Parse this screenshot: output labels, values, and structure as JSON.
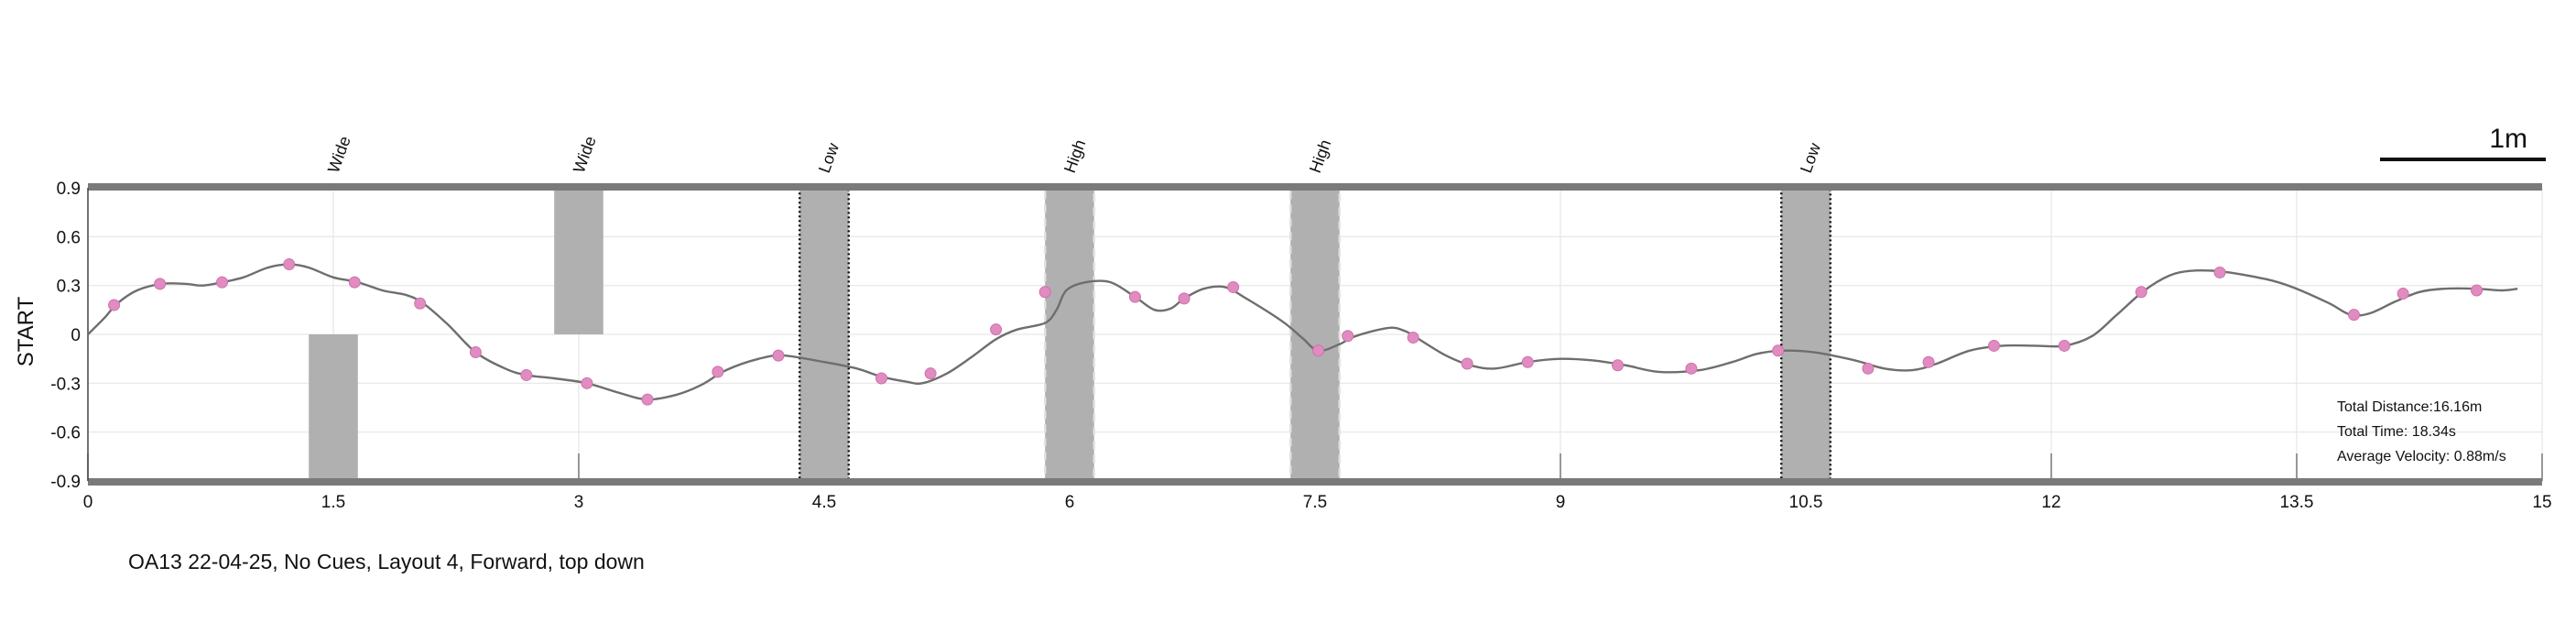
{
  "chart_data": {
    "type": "line",
    "ylabel": "START",
    "xlim": [
      0,
      15
    ],
    "ylim": [
      -0.9,
      0.9
    ],
    "x_ticks": [
      "0",
      "1.5",
      "3",
      "4.5",
      "6",
      "7.5",
      "9",
      "10.5",
      "12",
      "13.5",
      "15"
    ],
    "y_ticks": [
      "0.9",
      "0.6",
      "0.3",
      "0",
      "-0.3",
      "-0.6",
      "-0.9"
    ],
    "grid": true,
    "caption": "OA13 22-04-25, No Cues, Layout 4, Forward, top down",
    "scale_bar": "1m",
    "stats": {
      "distance": "Total Distance:16.16m",
      "time": "Total Time: 18.34s",
      "velocity": "Average Velocity: 0.88m/s"
    },
    "obstacles": [
      {
        "label": "Wide",
        "x0": 1.35,
        "x1": 1.65,
        "y0": -0.9,
        "y1": 0.0,
        "style": "solid"
      },
      {
        "label": "Wide",
        "x0": 2.85,
        "x1": 3.15,
        "y0": 0.0,
        "y1": 0.9,
        "style": "solid"
      },
      {
        "label": "Low",
        "x0": 4.35,
        "x1": 4.65,
        "y0": -0.9,
        "y1": 0.9,
        "style": "dotted-dark"
      },
      {
        "label": "High",
        "x0": 5.85,
        "x1": 6.15,
        "y0": -0.9,
        "y1": 0.9,
        "style": "dashed-light"
      },
      {
        "label": "High",
        "x0": 7.35,
        "x1": 7.65,
        "y0": -0.9,
        "y1": 0.9,
        "style": "dashed-light"
      },
      {
        "label": "Low",
        "x0": 10.35,
        "x1": 10.65,
        "y0": -0.9,
        "y1": 0.9,
        "style": "dotted-dark"
      }
    ],
    "path": [
      [
        0.0,
        0.0
      ],
      [
        0.1,
        0.1
      ],
      [
        0.18,
        0.19
      ],
      [
        0.3,
        0.27
      ],
      [
        0.45,
        0.31
      ],
      [
        0.6,
        0.31
      ],
      [
        0.7,
        0.3
      ],
      [
        0.82,
        0.32
      ],
      [
        0.95,
        0.35
      ],
      [
        1.1,
        0.41
      ],
      [
        1.23,
        0.43
      ],
      [
        1.35,
        0.41
      ],
      [
        1.5,
        0.35
      ],
      [
        1.65,
        0.32
      ],
      [
        1.8,
        0.27
      ],
      [
        1.95,
        0.24
      ],
      [
        2.05,
        0.19
      ],
      [
        2.2,
        0.06
      ],
      [
        2.37,
        -0.11
      ],
      [
        2.55,
        -0.21
      ],
      [
        2.68,
        -0.25
      ],
      [
        2.85,
        -0.27
      ],
      [
        3.05,
        -0.3
      ],
      [
        3.25,
        -0.36
      ],
      [
        3.42,
        -0.4
      ],
      [
        3.6,
        -0.37
      ],
      [
        3.75,
        -0.31
      ],
      [
        3.9,
        -0.22
      ],
      [
        4.1,
        -0.15
      ],
      [
        4.25,
        -0.13
      ],
      [
        4.5,
        -0.17
      ],
      [
        4.7,
        -0.21
      ],
      [
        4.85,
        -0.26
      ],
      [
        5.0,
        -0.29
      ],
      [
        5.1,
        -0.3
      ],
      [
        5.25,
        -0.24
      ],
      [
        5.4,
        -0.14
      ],
      [
        5.55,
        -0.03
      ],
      [
        5.68,
        0.03
      ],
      [
        5.85,
        0.07
      ],
      [
        5.92,
        0.15
      ],
      [
        5.98,
        0.27
      ],
      [
        6.1,
        0.32
      ],
      [
        6.25,
        0.32
      ],
      [
        6.4,
        0.23
      ],
      [
        6.52,
        0.15
      ],
      [
        6.62,
        0.16
      ],
      [
        6.7,
        0.22
      ],
      [
        6.82,
        0.28
      ],
      [
        6.95,
        0.29
      ],
      [
        7.08,
        0.22
      ],
      [
        7.3,
        0.08
      ],
      [
        7.42,
        -0.02
      ],
      [
        7.52,
        -0.1
      ],
      [
        7.65,
        -0.06
      ],
      [
        7.75,
        -0.01
      ],
      [
        7.95,
        0.04
      ],
      [
        8.05,
        0.02
      ],
      [
        8.12,
        -0.02
      ],
      [
        8.3,
        -0.13
      ],
      [
        8.45,
        -0.19
      ],
      [
        8.6,
        -0.21
      ],
      [
        8.8,
        -0.17
      ],
      [
        9.0,
        -0.15
      ],
      [
        9.2,
        -0.16
      ],
      [
        9.4,
        -0.19
      ],
      [
        9.6,
        -0.23
      ],
      [
        9.85,
        -0.22
      ],
      [
        10.05,
        -0.17
      ],
      [
        10.2,
        -0.12
      ],
      [
        10.35,
        -0.1
      ],
      [
        10.55,
        -0.11
      ],
      [
        10.8,
        -0.16
      ],
      [
        10.98,
        -0.21
      ],
      [
        11.15,
        -0.22
      ],
      [
        11.3,
        -0.18
      ],
      [
        11.5,
        -0.1
      ],
      [
        11.7,
        -0.07
      ],
      [
        11.9,
        -0.07
      ],
      [
        12.08,
        -0.07
      ],
      [
        12.25,
        -0.01
      ],
      [
        12.4,
        0.12
      ],
      [
        12.57,
        0.27
      ],
      [
        12.72,
        0.36
      ],
      [
        12.85,
        0.39
      ],
      [
        13.0,
        0.39
      ],
      [
        13.15,
        0.37
      ],
      [
        13.35,
        0.33
      ],
      [
        13.5,
        0.28
      ],
      [
        13.7,
        0.19
      ],
      [
        13.83,
        0.12
      ],
      [
        13.95,
        0.13
      ],
      [
        14.1,
        0.2
      ],
      [
        14.25,
        0.26
      ],
      [
        14.4,
        0.28
      ],
      [
        14.6,
        0.28
      ],
      [
        14.75,
        0.27
      ],
      [
        14.85,
        0.28
      ]
    ],
    "markers": [
      [
        0.16,
        0.18
      ],
      [
        0.44,
        0.31
      ],
      [
        0.82,
        0.32
      ],
      [
        1.23,
        0.43
      ],
      [
        1.63,
        0.32
      ],
      [
        2.03,
        0.19
      ],
      [
        2.37,
        -0.11
      ],
      [
        2.68,
        -0.25
      ],
      [
        3.05,
        -0.3
      ],
      [
        3.42,
        -0.4
      ],
      [
        3.85,
        -0.23
      ],
      [
        4.22,
        -0.13
      ],
      [
        4.85,
        -0.27
      ],
      [
        5.15,
        -0.24
      ],
      [
        5.55,
        0.03
      ],
      [
        5.85,
        0.26
      ],
      [
        6.4,
        0.23
      ],
      [
        6.7,
        0.22
      ],
      [
        7.0,
        0.29
      ],
      [
        7.52,
        -0.1
      ],
      [
        7.7,
        -0.01
      ],
      [
        8.1,
        -0.02
      ],
      [
        8.43,
        -0.18
      ],
      [
        8.8,
        -0.17
      ],
      [
        9.35,
        -0.19
      ],
      [
        9.8,
        -0.21
      ],
      [
        10.33,
        -0.1
      ],
      [
        10.88,
        -0.21
      ],
      [
        11.25,
        -0.17
      ],
      [
        11.65,
        -0.07
      ],
      [
        12.08,
        -0.07
      ],
      [
        12.55,
        0.26
      ],
      [
        13.03,
        0.38
      ],
      [
        13.85,
        0.12
      ],
      [
        14.15,
        0.25
      ],
      [
        14.6,
        0.27
      ]
    ]
  }
}
